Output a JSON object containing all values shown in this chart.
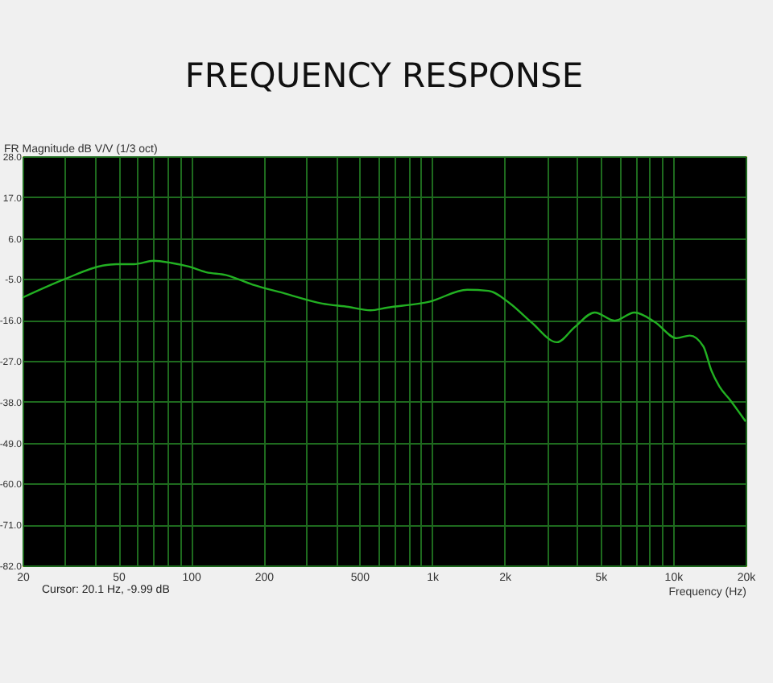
{
  "chart_data": {
    "type": "line",
    "title": "FREQUENCY RESPONSE",
    "ylabel": "FR Magnitude dB V/V (1/3 oct)",
    "xlabel": "Frequency (Hz)",
    "annotations": [
      "Cursor: 20.1 Hz, -9.99 dB"
    ],
    "x": [
      20,
      30,
      43,
      49,
      58,
      70,
      83,
      97,
      116,
      139,
      180,
      245,
      350,
      450,
      555,
      650,
      975,
      1400,
      1715,
      2100,
      2580,
      3300,
      3900,
      4730,
      5730,
      6920,
      8420,
      10330,
      11730,
      13350,
      14420,
      15570,
      17230,
      20000
    ],
    "series": [
      {
        "color": "#22b022",
        "values": [
          -10,
          -5,
          -1.4,
          -1,
          -1,
          -0.1,
          -0.7,
          -1.6,
          -3.2,
          -3.9,
          -6.5,
          -8.9,
          -11.6,
          -12.5,
          -13.4,
          -12.7,
          -11.1,
          -7.9,
          -8.2,
          -11.5,
          -16.6,
          -22,
          -18,
          -14,
          -16.2,
          -14,
          -16.6,
          -20.9,
          -20.2,
          -23.1,
          -29.6,
          -33.9,
          -37.5,
          -43.3
        ]
      }
    ],
    "log": "x",
    "xlim": [
      20,
      20000
    ],
    "xticks": [
      20,
      {
        "value": 30,
        "label": null
      },
      {
        "value": 40,
        "label": null
      },
      50,
      {
        "value": 60,
        "label": null
      },
      {
        "value": 70,
        "label": null
      },
      {
        "value": 80,
        "label": null
      },
      {
        "value": 90,
        "label": null
      },
      100,
      200,
      {
        "value": 300,
        "label": null
      },
      {
        "value": 400,
        "label": null
      },
      500,
      {
        "value": 600,
        "label": null
      },
      {
        "value": 700,
        "label": null
      },
      {
        "value": 800,
        "label": null
      },
      {
        "value": 900,
        "label": null
      },
      {
        "value": 1000,
        "label": "1k"
      },
      {
        "value": 2000,
        "label": "2k"
      },
      {
        "value": 3000,
        "label": null
      },
      {
        "value": 4000,
        "label": null
      },
      {
        "value": 5000,
        "label": "5k"
      },
      {
        "value": 6000,
        "label": null
      },
      {
        "value": 7000,
        "label": null
      },
      {
        "value": 8000,
        "label": null
      },
      {
        "value": 9000,
        "label": null
      },
      {
        "value": 10000,
        "label": "10k"
      },
      {
        "value": 20000,
        "label": "20k"
      }
    ],
    "ylim": [
      -82,
      28
    ],
    "yticks": [
      {
        "value": 28,
        "label": "28.0"
      },
      {
        "value": 17,
        "label": "17.0"
      },
      {
        "value": 6,
        "label": "6.0"
      },
      {
        "value": -5,
        "label": "-5.0"
      },
      {
        "value": -16,
        "label": "-16.0"
      },
      {
        "value": -27,
        "label": "-27.0"
      },
      {
        "value": -38,
        "label": "-38.0"
      },
      {
        "value": -49,
        "label": "-49.0"
      },
      {
        "value": -60,
        "label": "-60.0"
      },
      {
        "value": -71,
        "label": "-71.0"
      },
      {
        "value": -82,
        "label": "-82.0"
      }
    ],
    "grid": true,
    "marker": "none",
    "line_style": "solid"
  }
}
